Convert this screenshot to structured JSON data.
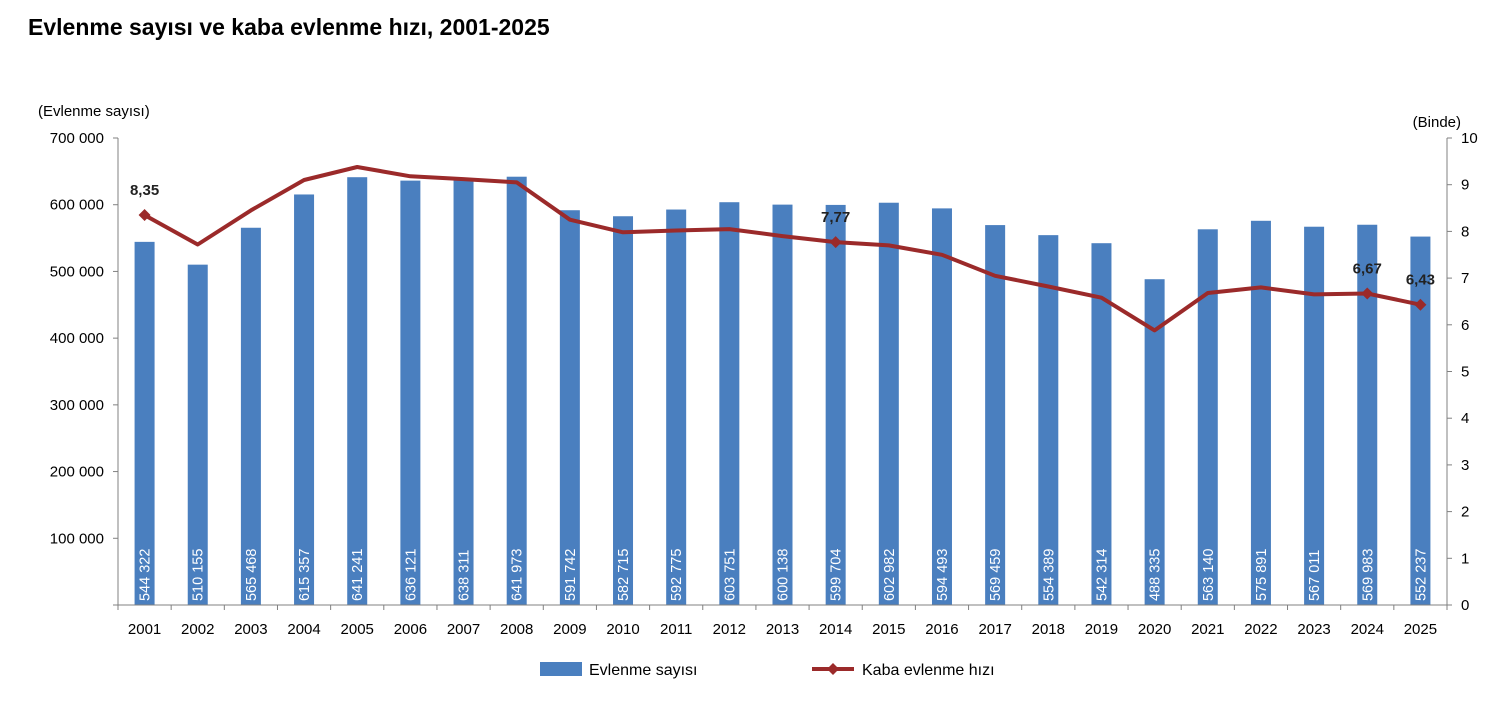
{
  "title": "Evlenme sayısı ve kaba evlenme hızı, 2001-2025",
  "colors": {
    "bars": "#4a7fbf",
    "line": "#9b2a2a",
    "axis": "#808080"
  },
  "chart_data": {
    "type": "bar",
    "title": "Evlenme sayısı ve kaba evlenme hızı, 2001-2025",
    "categories": [
      "2001",
      "2002",
      "2003",
      "2004",
      "2005",
      "2006",
      "2007",
      "2008",
      "2009",
      "2010",
      "2011",
      "2012",
      "2013",
      "2014",
      "2015",
      "2016",
      "2017",
      "2018",
      "2019",
      "2020",
      "2021",
      "2022",
      "2023",
      "2024",
      "2025"
    ],
    "ylabel_left": "(Evlenme sayısı)",
    "ylabel_right": "(Binde)",
    "ylim_left": [
      0,
      700000
    ],
    "ylim_right": [
      0,
      10
    ],
    "yticks_left": [
      "",
      "100 000",
      "200 000",
      "300 000",
      "400 000",
      "500 000",
      "600 000",
      "700 000"
    ],
    "yticks_right": [
      "0",
      "1",
      "2",
      "3",
      "4",
      "5",
      "6",
      "7",
      "8",
      "9",
      "10"
    ],
    "grid": false,
    "legend_position": "bottom",
    "series": [
      {
        "name": "Evlenme sayısı",
        "type": "bar",
        "axis": "left",
        "values": [
          544322,
          510155,
          565468,
          615357,
          641241,
          636121,
          638311,
          641973,
          591742,
          582715,
          592775,
          603751,
          600138,
          599704,
          602982,
          594493,
          569459,
          554389,
          542314,
          488335,
          563140,
          575891,
          567011,
          569983,
          552237
        ],
        "labels": [
          "544 322",
          "510 155",
          "565 468",
          "615 357",
          "641 241",
          "636 121",
          "638 311",
          "641 973",
          "591 742",
          "582 715",
          "592 775",
          "603 751",
          "600 138",
          "599 704",
          "602 982",
          "594 493",
          "569 459",
          "554 389",
          "542 314",
          "488 335",
          "563 140",
          "575 891",
          "567 011",
          "569 983",
          "552 237"
        ]
      },
      {
        "name": "Kaba evlenme hızı",
        "type": "line",
        "axis": "right",
        "values": [
          8.35,
          7.72,
          8.45,
          9.1,
          9.38,
          9.18,
          9.12,
          9.05,
          8.25,
          7.98,
          8.02,
          8.05,
          7.9,
          7.77,
          7.7,
          7.5,
          7.05,
          6.82,
          6.58,
          5.88,
          6.68,
          6.8,
          6.65,
          6.67,
          6.43
        ],
        "annotations": [
          {
            "index": 0,
            "text": "8,35"
          },
          {
            "index": 13,
            "text": "7,77"
          },
          {
            "index": 23,
            "text": "6,67"
          },
          {
            "index": 24,
            "text": "6,43"
          }
        ]
      }
    ]
  }
}
